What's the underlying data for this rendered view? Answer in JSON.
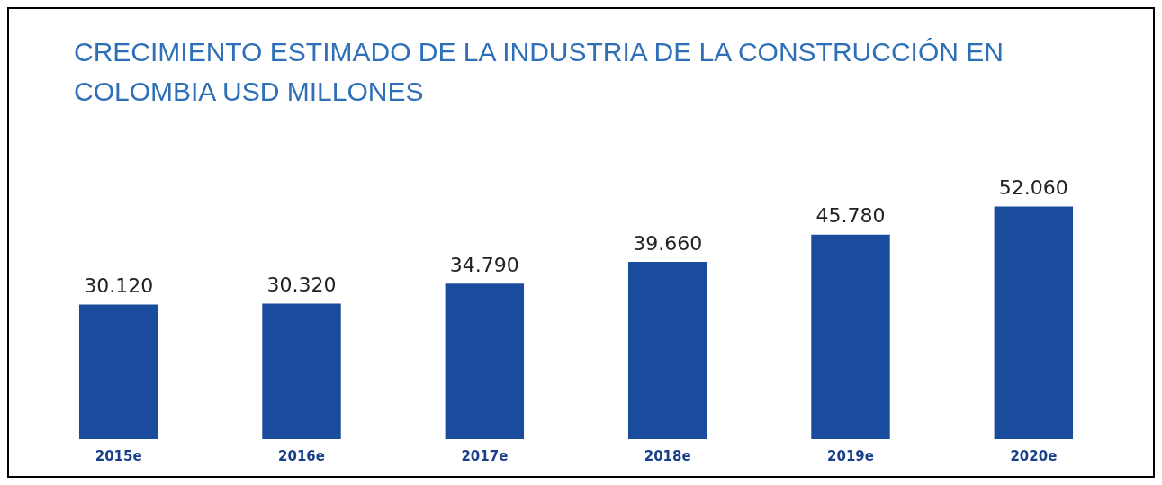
{
  "chart_data": {
    "type": "bar",
    "title": "CRECIMIENTO ESTIMADO DE LA INDUSTRIA DE LA CONSTRUCCIÓN EN COLOMBIA USD MILLONES",
    "categories": [
      "2015e",
      "2016e",
      "2017e",
      "2018e",
      "2019e",
      "2020e"
    ],
    "values": [
      30120,
      30320,
      34790,
      39660,
      45780,
      52060
    ],
    "value_labels": [
      "30.120",
      "30.320",
      "34.790",
      "39.660",
      "45.780",
      "52.060"
    ],
    "color": "#1a4c9e",
    "grid": false,
    "legend": false
  }
}
